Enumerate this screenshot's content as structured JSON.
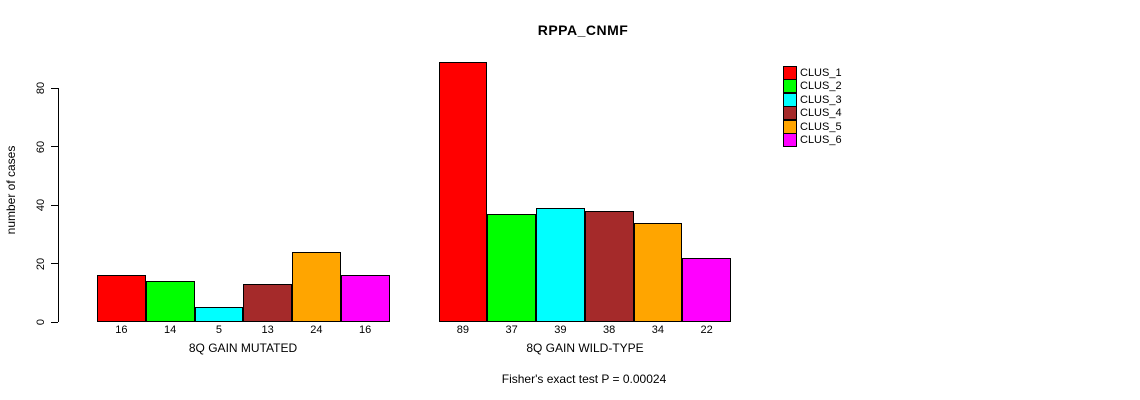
{
  "title": "RPPA_CNMF",
  "chart_data": {
    "type": "bar",
    "title": "RPPA_CNMF",
    "ylabel": "number of cases",
    "ylim": [
      0,
      89
    ],
    "yticks": [
      0,
      20,
      40,
      60,
      80
    ],
    "grid": false,
    "legend_position": "right",
    "categories": [
      "CLUS_1",
      "CLUS_2",
      "CLUS_3",
      "CLUS_4",
      "CLUS_5",
      "CLUS_6"
    ],
    "colors": [
      "#FF0000",
      "#00FF00",
      "#00FFFF",
      "#A52A2A",
      "#FFA500",
      "#FF00FF"
    ],
    "groups": [
      {
        "label": "8Q GAIN MUTATED",
        "values": [
          16,
          14,
          5,
          13,
          24,
          16
        ]
      },
      {
        "label": "8Q GAIN WILD-TYPE",
        "values": [
          89,
          37,
          39,
          38,
          34,
          22
        ]
      }
    ],
    "annotation": "Fisher's exact test P = 0.00024"
  },
  "legend": {
    "items": [
      {
        "label": "CLUS_1",
        "color": "#FF0000"
      },
      {
        "label": "CLUS_2",
        "color": "#00FF00"
      },
      {
        "label": "CLUS_3",
        "color": "#00FFFF"
      },
      {
        "label": "CLUS_4",
        "color": "#A52A2A"
      },
      {
        "label": "CLUS_5",
        "color": "#FFA500"
      },
      {
        "label": "CLUS_6",
        "color": "#FF00FF"
      }
    ]
  }
}
